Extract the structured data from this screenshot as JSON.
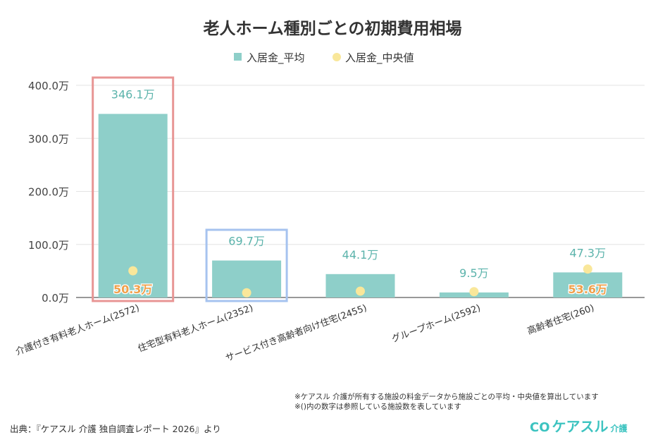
{
  "chart_data": {
    "type": "bar",
    "title": "老人ホーム種別ごとの初期費用相場",
    "categories": [
      "介護付き有料老人ホーム(2572)",
      "住宅型有料老人ホーム(2352)",
      "サービス付き高齢者向け住宅(2455)",
      "グループホーム(2592)",
      "高齢者住宅(260)"
    ],
    "series": [
      {
        "name": "入居金_平均",
        "kind": "bar",
        "color": "#8ecfc9",
        "values": [
          346.1,
          69.7,
          44.1,
          9.5,
          47.3
        ],
        "labels": [
          "346.1万",
          "69.7万",
          "44.1万",
          "9.5万",
          "47.3万"
        ]
      },
      {
        "name": "入居金_中央値",
        "kind": "point",
        "color": "#f9e79a",
        "values": [
          50.3,
          9,
          12,
          11,
          53.6
        ],
        "labels": [
          "50.3万",
          "",
          "",
          "",
          "53.6万"
        ]
      }
    ],
    "yticks": [
      "0.0万",
      "100.0万",
      "200.0万",
      "300.0万",
      "400.0万"
    ],
    "ytick_values": [
      0,
      100,
      200,
      300,
      400
    ],
    "ylim": [
      0,
      400
    ],
    "grid": true,
    "legend": "top-center",
    "highlights": [
      {
        "category": "介護付き有料老人ホーム(2572)",
        "color": "#e89594"
      },
      {
        "category": "住宅型有料老人ホーム(2352)",
        "color": "#a6c3ef"
      }
    ],
    "value_label_color": "#5bb3ab",
    "median_label_color": "#f0a04b"
  },
  "notes": [
    "※ケアスル 介護が所有する施設の料金データから施設ごとの平均・中央値を算出しています",
    "※()内の数字は参照している施設数を表しています"
  ],
  "source": "出典：『ケアスル 介護 独自調査レポート 2026』より",
  "logo": {
    "text": "ケアスル",
    "sub": "介護",
    "color": "#3cc3c0"
  }
}
